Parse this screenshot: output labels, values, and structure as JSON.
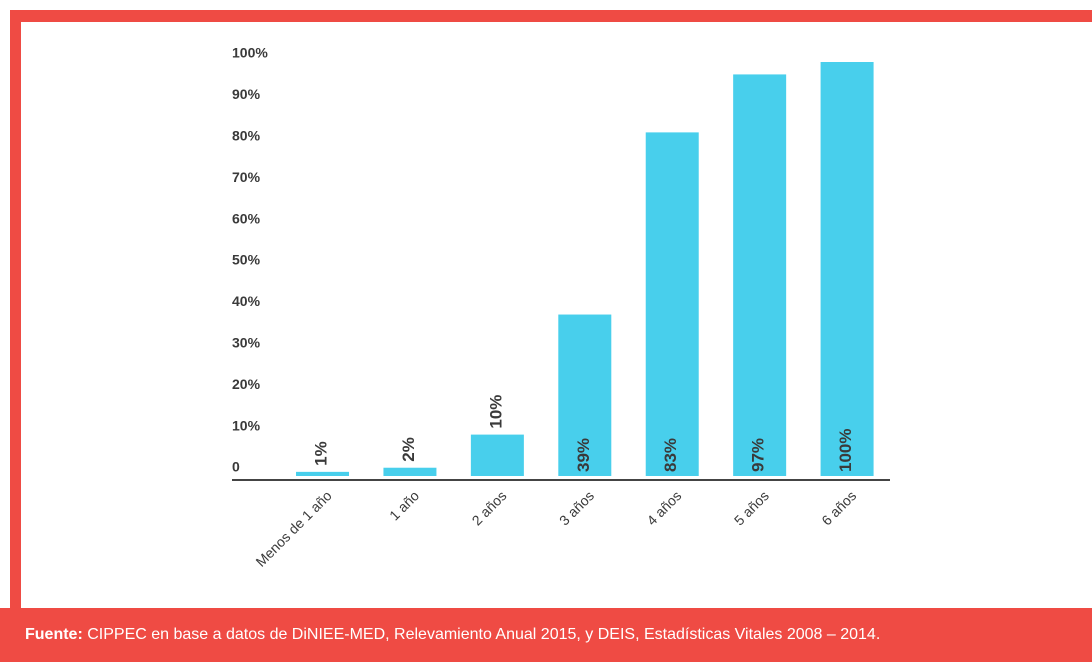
{
  "chart_data": {
    "type": "bar",
    "categories": [
      "Menos de 1 año",
      "1 año",
      "2 años",
      "3 años",
      "4 años",
      "5 años",
      "6 años"
    ],
    "values": [
      1,
      2,
      10,
      39,
      83,
      97,
      100
    ],
    "value_labels": [
      "1%",
      "2%",
      "10%",
      "39%",
      "83%",
      "97%",
      "100%"
    ],
    "color": "#48cfec",
    "ylim": [
      0,
      100
    ],
    "yticks": [
      0,
      {
        "value": 10,
        "label": "10%"
      },
      {
        "value": 20,
        "label": "20%"
      },
      {
        "value": 30,
        "label": "30%"
      },
      {
        "value": 40,
        "label": "40%"
      },
      {
        "value": 50,
        "label": "50%"
      },
      {
        "value": 60,
        "label": "60%"
      },
      {
        "value": 70,
        "label": "70%"
      },
      {
        "value": 80,
        "label": "80%"
      },
      {
        "value": 90,
        "label": "90%"
      },
      {
        "value": 100,
        "label": "100%"
      }
    ],
    "grid": false
  },
  "footer": {
    "label": "Fuente:",
    "text": "CIPPEC en base a datos de DiNIEE-MED, Relevamiento Anual 2015, y DEIS, Estadísticas Vitales 2008 – 2014."
  }
}
